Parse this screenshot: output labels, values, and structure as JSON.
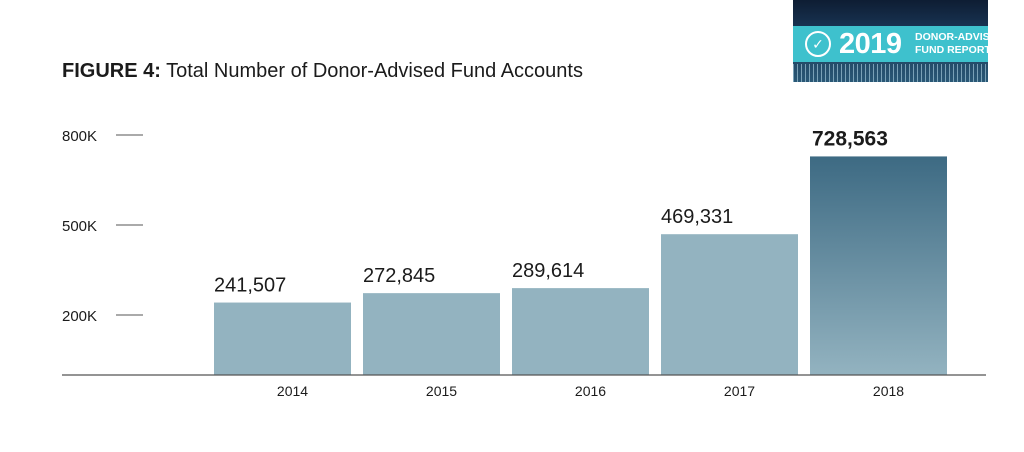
{
  "badge": {
    "year": "2019",
    "line1": "DONOR-ADVISED",
    "line2": "FUND REPORT",
    "logo_icon": "checkmark-circle-icon"
  },
  "figure": {
    "label": "FIGURE 4:",
    "title": "Total Number of Donor-Advised Fund Accounts"
  },
  "chart_data": {
    "type": "bar",
    "categories": [
      "2014",
      "2015",
      "2016",
      "2017",
      "2018"
    ],
    "values": [
      241507,
      272845,
      289614,
      469331,
      728563
    ],
    "value_labels": [
      "241,507",
      "272,845",
      "289,614",
      "469,331",
      "728,563"
    ],
    "highlight_index": 4,
    "y_ticks": [
      200000,
      500000,
      800000
    ],
    "y_tick_labels": [
      "200K",
      "500K",
      "800K"
    ],
    "ylim": [
      0,
      800000
    ],
    "grid": false,
    "colors": {
      "bar": "#93b3c0",
      "highlight_top": "#3d6a83",
      "highlight_bottom": "#93b3c0",
      "axis": "#555555",
      "text": "#1b1b1b"
    }
  }
}
